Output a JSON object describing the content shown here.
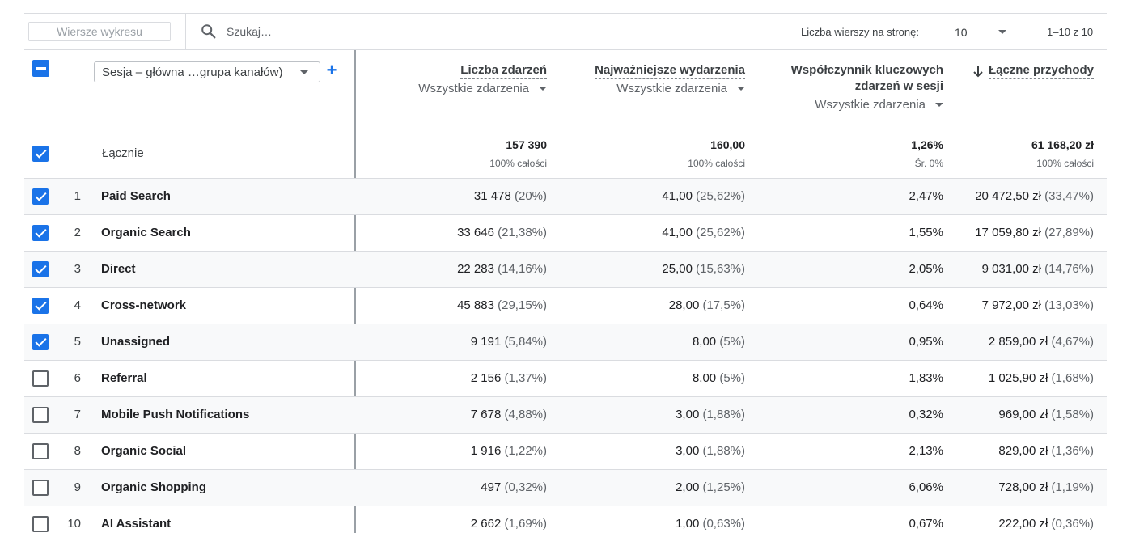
{
  "toolbar": {
    "chart_rows_label": "Wiersze wykresu",
    "search_placeholder": "Szukaj…",
    "rows_per_page_label": "Liczba wierszy na stronę:",
    "rows_per_page_value": "10",
    "range_label": "1–10 z 10"
  },
  "header": {
    "dimension_select": "Sesja – główna …grupa kanałów)",
    "add_dimension": "+",
    "columns": [
      {
        "title_lines": [
          "Liczba zdarzeń"
        ],
        "filter": "Wszystkie zdarzenia"
      },
      {
        "title_lines": [
          "Najważniejsze wydarzenia"
        ],
        "filter": "Wszystkie zdarzenia"
      },
      {
        "title_lines": [
          "Współczynnik kluczowych",
          "zdarzeń w sesji"
        ],
        "filter": "Wszystkie zdarzenia"
      },
      {
        "title_lines": [
          "Łączne przychody"
        ],
        "filter": ""
      }
    ]
  },
  "totals": {
    "label": "Łącznie",
    "values": [
      "157 390",
      "160,00",
      "1,26%",
      "61 168,20 zł"
    ],
    "subs": [
      "100% całości",
      "100% całości",
      "Śr. 0%",
      "100% całości"
    ]
  },
  "rows": [
    {
      "index": "1",
      "name": "Paid Search",
      "checked": true,
      "events": "31 478",
      "events_pct": "(20%)",
      "key": "41,00",
      "key_pct": "(25,62%)",
      "rate": "2,47%",
      "revenue": "20 472,50 zł",
      "revenue_pct": "(33,47%)"
    },
    {
      "index": "2",
      "name": "Organic Search",
      "checked": true,
      "events": "33 646",
      "events_pct": "(21,38%)",
      "key": "41,00",
      "key_pct": "(25,62%)",
      "rate": "1,55%",
      "revenue": "17 059,80 zł",
      "revenue_pct": "(27,89%)"
    },
    {
      "index": "3",
      "name": "Direct",
      "checked": true,
      "events": "22 283",
      "events_pct": "(14,16%)",
      "key": "25,00",
      "key_pct": "(15,63%)",
      "rate": "2,05%",
      "revenue": "9 031,00 zł",
      "revenue_pct": "(14,76%)"
    },
    {
      "index": "4",
      "name": "Cross-network",
      "checked": true,
      "events": "45 883",
      "events_pct": "(29,15%)",
      "key": "28,00",
      "key_pct": "(17,5%)",
      "rate": "0,64%",
      "revenue": "7 972,00 zł",
      "revenue_pct": "(13,03%)"
    },
    {
      "index": "5",
      "name": "Unassigned",
      "checked": true,
      "events": "9 191",
      "events_pct": "(5,84%)",
      "key": "8,00",
      "key_pct": "(5%)",
      "rate": "0,95%",
      "revenue": "2 859,00 zł",
      "revenue_pct": "(4,67%)"
    },
    {
      "index": "6",
      "name": "Referral",
      "checked": false,
      "events": "2 156",
      "events_pct": "(1,37%)",
      "key": "8,00",
      "key_pct": "(5%)",
      "rate": "1,83%",
      "revenue": "1 025,90 zł",
      "revenue_pct": "(1,68%)"
    },
    {
      "index": "7",
      "name": "Mobile Push Notifications",
      "checked": false,
      "events": "7 678",
      "events_pct": "(4,88%)",
      "key": "3,00",
      "key_pct": "(1,88%)",
      "rate": "0,32%",
      "revenue": "969,00 zł",
      "revenue_pct": "(1,58%)"
    },
    {
      "index": "8",
      "name": "Organic Social",
      "checked": false,
      "events": "1 916",
      "events_pct": "(1,22%)",
      "key": "3,00",
      "key_pct": "(1,88%)",
      "rate": "2,13%",
      "revenue": "829,00 zł",
      "revenue_pct": "(1,36%)"
    },
    {
      "index": "9",
      "name": "Organic Shopping",
      "checked": false,
      "events": "497",
      "events_pct": "(0,32%)",
      "key": "2,00",
      "key_pct": "(1,25%)",
      "rate": "6,06%",
      "revenue": "728,00 zł",
      "revenue_pct": "(1,19%)"
    },
    {
      "index": "10",
      "name": "AI Assistant",
      "checked": false,
      "events": "2 662",
      "events_pct": "(1,69%)",
      "key": "1,00",
      "key_pct": "(0,63%)",
      "rate": "0,67%",
      "revenue": "222,00 zł",
      "revenue_pct": "(0,36%)"
    }
  ],
  "colors": {
    "accent": "#1a73e8",
    "border": "#dadce0",
    "shaded_row": "#f8f9fa"
  }
}
